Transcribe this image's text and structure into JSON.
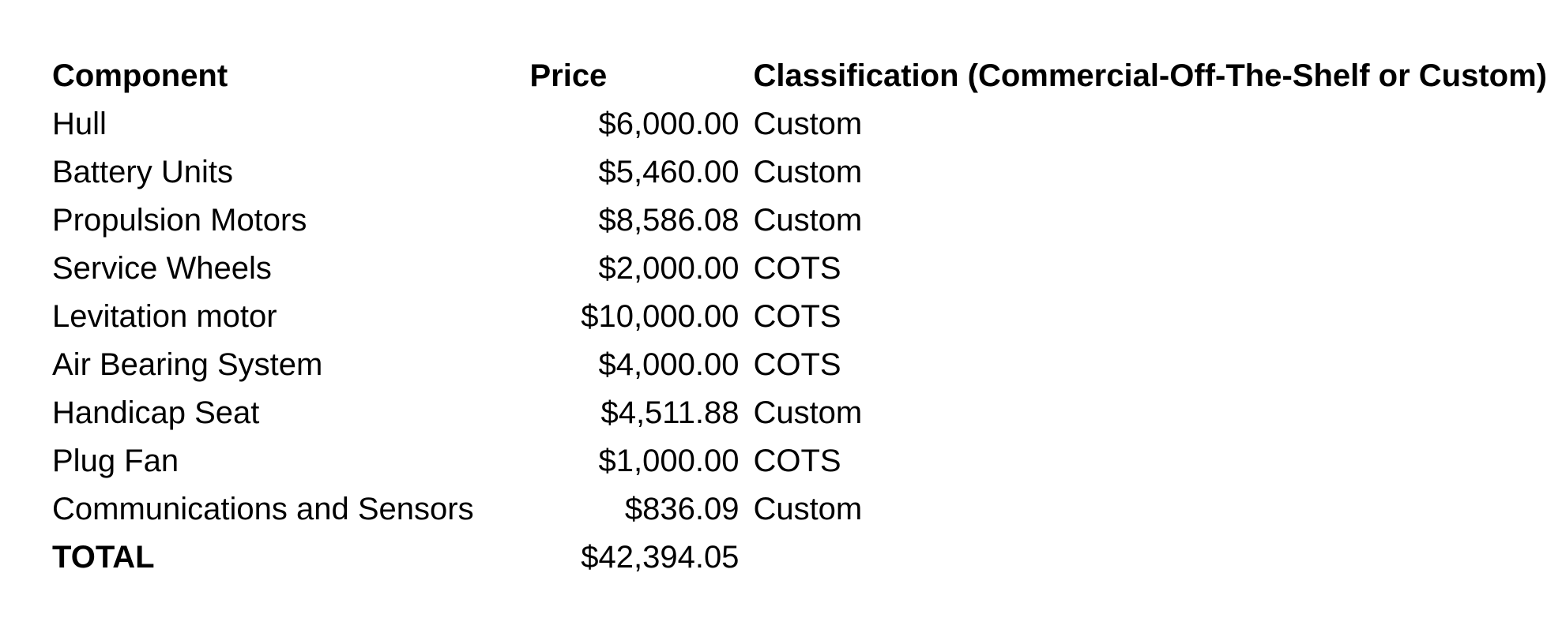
{
  "table": {
    "headers": {
      "component": "Component",
      "price": "Price",
      "classification": "Classification (Commercial-Off-The-Shelf or Custom)"
    },
    "rows": [
      {
        "component": "Hull",
        "price": "$6,000.00",
        "classification": "Custom"
      },
      {
        "component": "Battery Units",
        "price": "$5,460.00",
        "classification": "Custom"
      },
      {
        "component": "Propulsion Motors",
        "price": "$8,586.08",
        "classification": "Custom"
      },
      {
        "component": "Service Wheels",
        "price": "$2,000.00",
        "classification": "COTS"
      },
      {
        "component": "Levitation motor",
        "price": "$10,000.00",
        "classification": "COTS"
      },
      {
        "component": "Air Bearing System",
        "price": "$4,000.00",
        "classification": "COTS"
      },
      {
        "component": "Handicap Seat",
        "price": "$4,511.88",
        "classification": "Custom"
      },
      {
        "component": "Plug Fan",
        "price": "$1,000.00",
        "classification": "COTS"
      },
      {
        "component": "Communications and Sensors",
        "price": "$836.09",
        "classification": "Custom"
      }
    ],
    "total": {
      "label": "TOTAL",
      "price": "$42,394.05"
    }
  }
}
